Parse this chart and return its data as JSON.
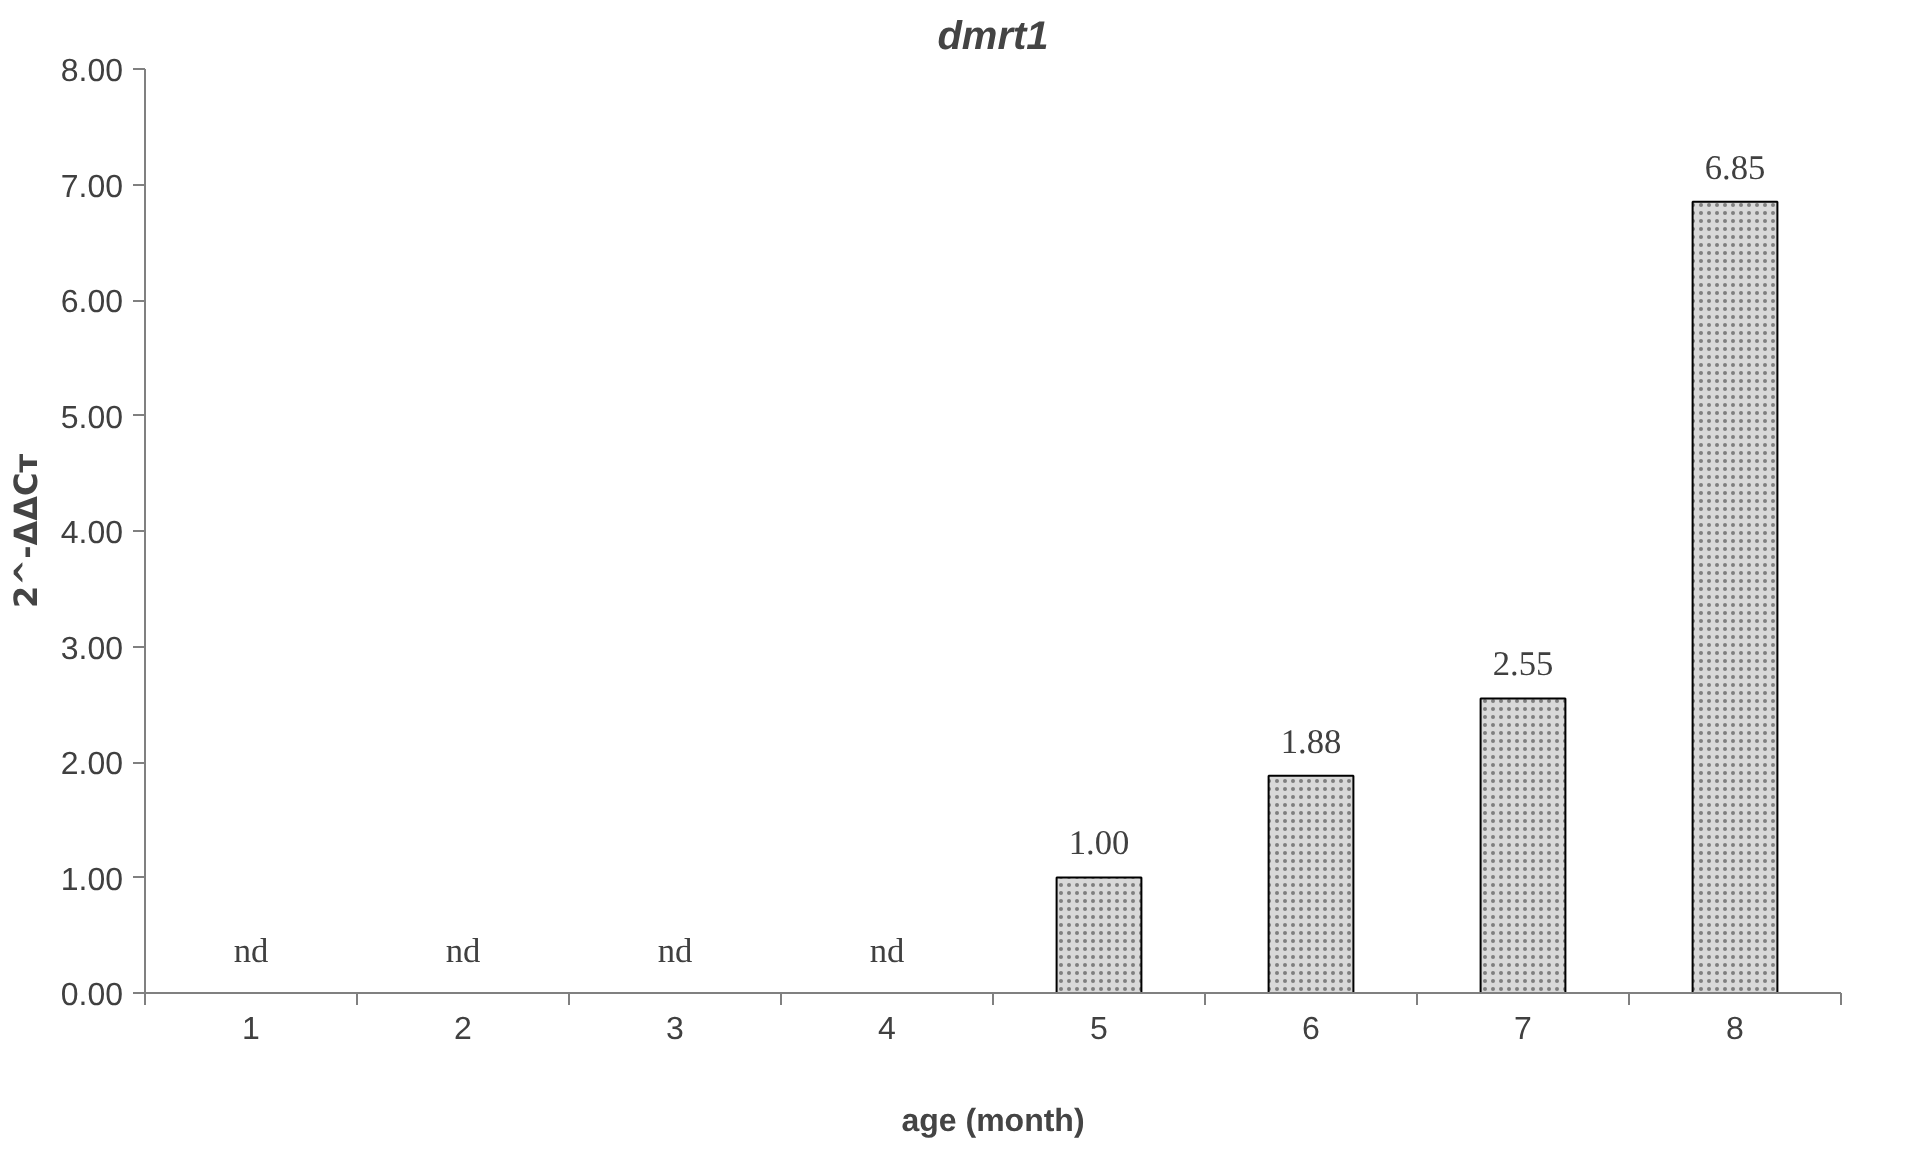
{
  "chart_data": {
    "type": "bar",
    "title": "dmrt1",
    "xlabel": "age (month)",
    "ylabel": "2^-ΔΔCᴛ",
    "categories": [
      "1",
      "2",
      "3",
      "4",
      "5",
      "6",
      "7",
      "8"
    ],
    "values": [
      null,
      null,
      null,
      null,
      1.0,
      1.88,
      2.55,
      6.85
    ],
    "value_labels": [
      "nd",
      "nd",
      "nd",
      "nd",
      "1.00",
      "1.88",
      "2.55",
      "6.85"
    ],
    "color": "#d9d9d9",
    "ylim": [
      0,
      8
    ],
    "yticks": [
      {
        "value": 0,
        "label": "0.00"
      },
      {
        "value": 1,
        "label": "1.00"
      },
      {
        "value": 2,
        "label": "2.00"
      },
      {
        "value": 3,
        "label": "3.00"
      },
      {
        "value": 4,
        "label": "4.00"
      },
      {
        "value": 5,
        "label": "5.00"
      },
      {
        "value": 6,
        "label": "6.00"
      },
      {
        "value": 7,
        "label": "7.00"
      },
      {
        "value": 8,
        "label": "8.00"
      }
    ],
    "grid": false
  }
}
